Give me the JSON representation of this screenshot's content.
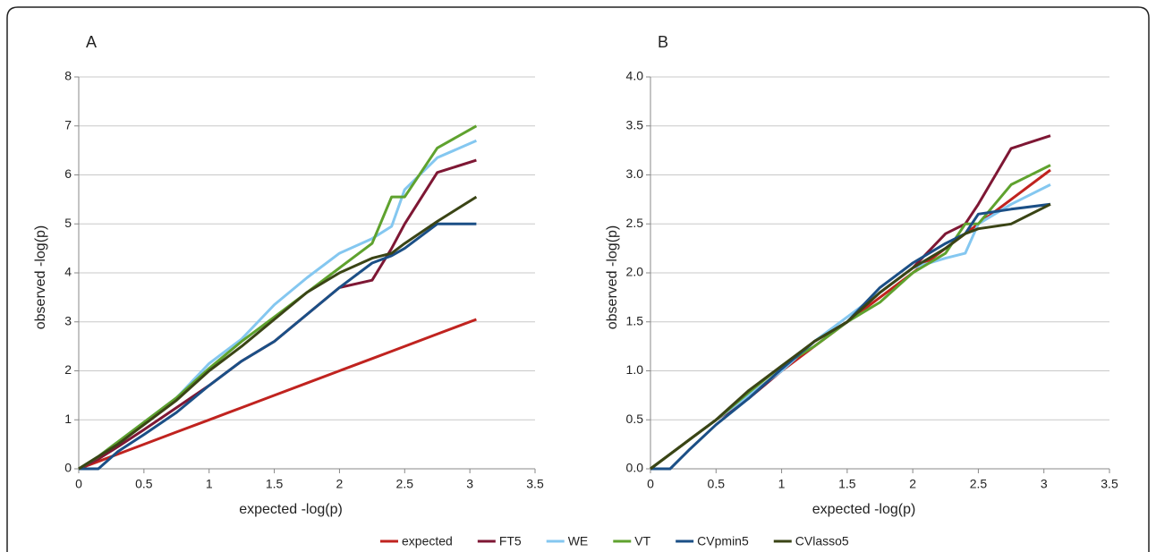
{
  "chart_data": [
    {
      "type": "line",
      "title": "A",
      "x_label": "expected -log(p)",
      "y_label": "observed -log(p)",
      "x": [
        0,
        0.15,
        0.3,
        0.5,
        0.75,
        1,
        1.25,
        1.5,
        1.75,
        2,
        2.25,
        2.4,
        2.5,
        2.75,
        3.05
      ],
      "xlim": [
        0,
        3.5
      ],
      "xticks": [
        0,
        0.5,
        1,
        1.5,
        2,
        2.5,
        3,
        3.5
      ],
      "ylim": [
        0,
        8
      ],
      "yticks": [
        0,
        1,
        2,
        3,
        4,
        5,
        6,
        7,
        8
      ],
      "grid": true,
      "series": [
        {
          "name": "expected",
          "color": "#c0231f",
          "values": [
            0,
            0.15,
            0.3,
            0.5,
            0.75,
            1,
            1.25,
            1.5,
            1.75,
            2,
            2.25,
            2.4,
            2.5,
            2.75,
            3.05
          ]
        },
        {
          "name": "FT5",
          "color": "#7e1734",
          "values": [
            0,
            0.2,
            0.45,
            0.8,
            1.25,
            1.7,
            2.2,
            2.6,
            3.15,
            3.7,
            3.85,
            4.5,
            5.0,
            6.05,
            6.3
          ]
        },
        {
          "name": "WE",
          "color": "#84c7f0",
          "values": [
            0,
            0.25,
            0.55,
            0.95,
            1.45,
            2.15,
            2.65,
            3.35,
            3.9,
            4.4,
            4.7,
            4.95,
            5.7,
            6.35,
            6.7
          ]
        },
        {
          "name": "VT",
          "color": "#5fa22e",
          "values": [
            0,
            0.25,
            0.55,
            0.95,
            1.45,
            2.05,
            2.6,
            3.1,
            3.6,
            4.1,
            4.6,
            5.55,
            5.55,
            6.55,
            7.0
          ]
        },
        {
          "name": "CVpmin5",
          "color": "#1b4f86",
          "values": [
            0,
            0,
            0.35,
            0.7,
            1.15,
            1.7,
            2.2,
            2.6,
            3.15,
            3.7,
            4.2,
            4.35,
            4.5,
            5.0,
            5.0
          ]
        },
        {
          "name": "CVlasso5",
          "color": "#3a4415",
          "values": [
            0,
            0.25,
            0.5,
            0.9,
            1.4,
            2.0,
            2.5,
            3.05,
            3.6,
            4.0,
            4.3,
            4.4,
            4.6,
            5.05,
            5.55
          ]
        }
      ]
    },
    {
      "type": "line",
      "title": "B",
      "x_label": "expected -log(p)",
      "y_label": "observed -log(p)",
      "x": [
        0,
        0.15,
        0.3,
        0.5,
        0.75,
        1,
        1.25,
        1.5,
        1.75,
        2,
        2.25,
        2.4,
        2.5,
        2.75,
        3.05
      ],
      "xlim": [
        0,
        3.5
      ],
      "xticks": [
        0,
        0.5,
        1,
        1.5,
        2,
        2.5,
        3,
        3.5
      ],
      "ylim": [
        0,
        4
      ],
      "yticks": [
        {
          "value": 0,
          "label": "0.0"
        },
        0.5,
        {
          "value": 1,
          "label": "1.0"
        },
        1.5,
        {
          "value": 2,
          "label": "2.0"
        },
        2.5,
        {
          "value": 3,
          "label": "3.0"
        },
        3.5,
        {
          "value": 4,
          "label": "4.0"
        }
      ],
      "grid": true,
      "series": [
        {
          "color": "#c0231f",
          "values": [
            0,
            0.15,
            0.3,
            0.5,
            0.75,
            1,
            1.25,
            1.5,
            1.75,
            2,
            2.25,
            2.4,
            2.5,
            2.75,
            3.05
          ]
        },
        {
          "color": "#7e1734",
          "values": [
            0,
            0.15,
            0.3,
            0.5,
            0.72,
            1.0,
            1.3,
            1.5,
            1.8,
            2.05,
            2.4,
            2.5,
            2.7,
            3.27,
            3.4
          ]
        },
        {
          "color": "#84c7f0",
          "values": [
            0,
            0.15,
            0.3,
            0.5,
            0.75,
            1.0,
            1.3,
            1.55,
            1.8,
            2.05,
            2.15,
            2.2,
            2.5,
            2.7,
            2.9
          ]
        },
        {
          "color": "#5fa22e",
          "values": [
            0,
            0.15,
            0.3,
            0.5,
            0.78,
            1.05,
            1.25,
            1.5,
            1.7,
            2.0,
            2.2,
            2.5,
            2.5,
            2.9,
            3.1
          ]
        },
        {
          "color": "#1b4f86",
          "values": [
            0,
            0,
            0.2,
            0.45,
            0.72,
            1.02,
            1.3,
            1.5,
            1.85,
            2.1,
            2.3,
            2.4,
            2.6,
            2.65,
            2.7
          ]
        },
        {
          "color": "#3a4415",
          "values": [
            0,
            0.15,
            0.3,
            0.5,
            0.8,
            1.05,
            1.3,
            1.5,
            1.8,
            2.05,
            2.25,
            2.4,
            2.45,
            2.5,
            2.7
          ]
        }
      ]
    }
  ]
}
